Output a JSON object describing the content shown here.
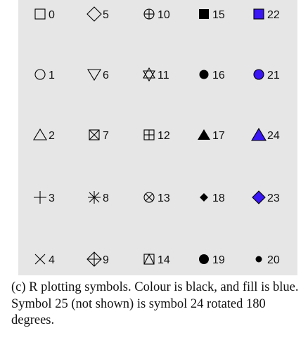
{
  "columns": [
    [
      0,
      1,
      2,
      3,
      4
    ],
    [
      5,
      6,
      7,
      8,
      9
    ],
    [
      10,
      11,
      12,
      13,
      14
    ],
    [
      15,
      16,
      17,
      18,
      19
    ],
    [
      22,
      21,
      24,
      23,
      20
    ]
  ],
  "colors": {
    "panel": "#e6e6e6",
    "stroke": "#000000",
    "fill": "#3a16f5"
  },
  "caption": "(c) R plotting symbols. Colour is black, and fill is blue. Symbol 25 (not shown) is symbol 24 rotated 180 degrees."
}
